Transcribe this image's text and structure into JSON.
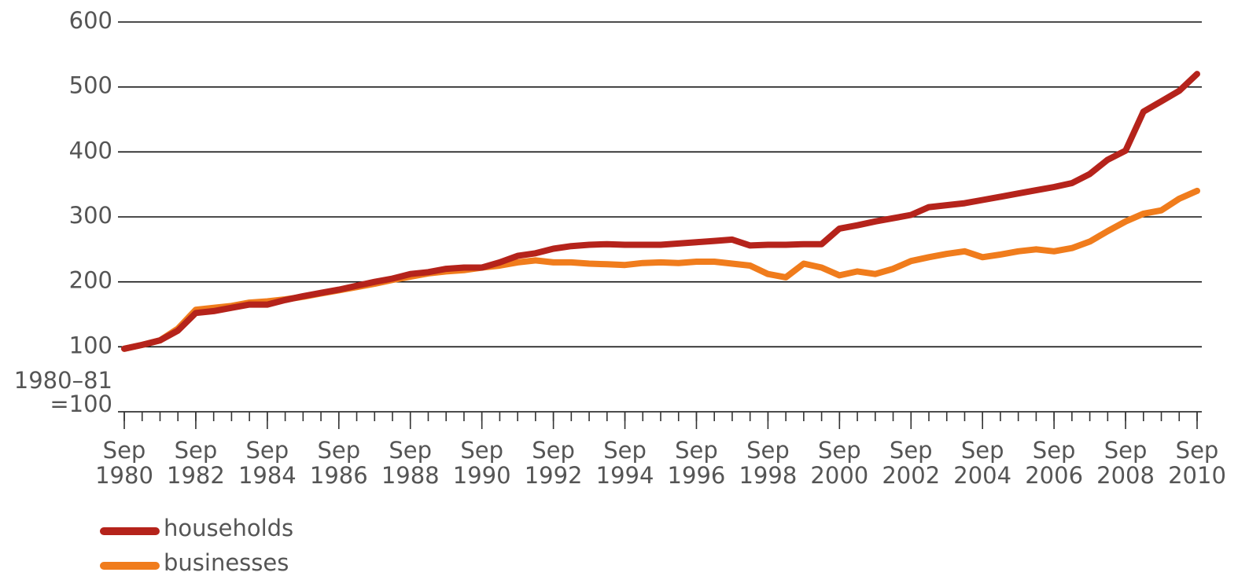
{
  "chart_data": {
    "type": "line",
    "y_label": "1980–81 =100",
    "x": [
      1980.75,
      1981.25,
      1981.75,
      1982.25,
      1982.75,
      1983.25,
      1983.75,
      1984.25,
      1984.75,
      1985.25,
      1985.75,
      1986.25,
      1986.75,
      1987.25,
      1987.75,
      1988.25,
      1988.75,
      1989.25,
      1989.75,
      1990.25,
      1990.75,
      1991.25,
      1991.75,
      1992.25,
      1992.75,
      1993.25,
      1993.75,
      1994.25,
      1994.75,
      1995.25,
      1995.75,
      1996.25,
      1996.75,
      1997.25,
      1997.75,
      1998.25,
      1998.75,
      1999.25,
      1999.75,
      2000.25,
      2000.75,
      2001.25,
      2001.75,
      2002.25,
      2002.75,
      2003.25,
      2003.75,
      2004.25,
      2004.75,
      2005.25,
      2005.75,
      2006.25,
      2006.75,
      2007.25,
      2007.75,
      2008.25,
      2008.75,
      2009.25,
      2009.75,
      2010.25,
      2010.75
    ],
    "series": [
      {
        "name": "households",
        "color": "#b5231b",
        "values": [
          97,
          103,
          110,
          125,
          152,
          155,
          160,
          165,
          165,
          172,
          178,
          183,
          188,
          194,
          200,
          205,
          212,
          215,
          220,
          222,
          222,
          230,
          240,
          244,
          251,
          255,
          257,
          258,
          257,
          257,
          257,
          259,
          261,
          263,
          265,
          256,
          257,
          257,
          258,
          258,
          282,
          287,
          293,
          298,
          303,
          315,
          318,
          321,
          326,
          331,
          336,
          341,
          346,
          352,
          366,
          388,
          402,
          462,
          478,
          494,
          520
        ]
      },
      {
        "name": "businesses",
        "color": "#f07c1c",
        "values": [
          97,
          103,
          110,
          128,
          157,
          160,
          163,
          168,
          170,
          173,
          177,
          182,
          187,
          192,
          197,
          203,
          208,
          213,
          216,
          218,
          222,
          225,
          230,
          233,
          230,
          230,
          228,
          227,
          226,
          229,
          230,
          229,
          231,
          231,
          228,
          225,
          212,
          207,
          228,
          222,
          210,
          216,
          212,
          220,
          232,
          238,
          243,
          247,
          238,
          242,
          247,
          250,
          247,
          252,
          262,
          278,
          293,
          305,
          310,
          328,
          340
        ]
      }
    ],
    "xlim": [
      1980.75,
      2010.75
    ],
    "xticks": [
      {
        "value": 1980.75,
        "label": "Sep 1980"
      },
      {
        "value": 1982.75,
        "label": "Sep 1982"
      },
      {
        "value": 1984.75,
        "label": "Sep 1984"
      },
      {
        "value": 1986.75,
        "label": "Sep 1986"
      },
      {
        "value": 1988.75,
        "label": "Sep 1988"
      },
      {
        "value": 1990.75,
        "label": "Sep 1990"
      },
      {
        "value": 1992.75,
        "label": "Sep 1992"
      },
      {
        "value": 1994.75,
        "label": "Sep 1994"
      },
      {
        "value": 1996.75,
        "label": "Sep 1996"
      },
      {
        "value": 1998.75,
        "label": "Sep 1998"
      },
      {
        "value": 2000.75,
        "label": "Sep 2000"
      },
      {
        "value": 2002.75,
        "label": "Sep 2002"
      },
      {
        "value": 2004.75,
        "label": "Sep 2004"
      },
      {
        "value": 2006.75,
        "label": "Sep 2006"
      },
      {
        "value": 2008.75,
        "label": "Sep 2008"
      },
      {
        "value": 2010.75,
        "label": "Sep 2010"
      }
    ],
    "ylim": [
      0,
      600
    ],
    "yticks": [
      100,
      200,
      300,
      400,
      500,
      600
    ],
    "grid": true,
    "legend": "bottom-left"
  }
}
